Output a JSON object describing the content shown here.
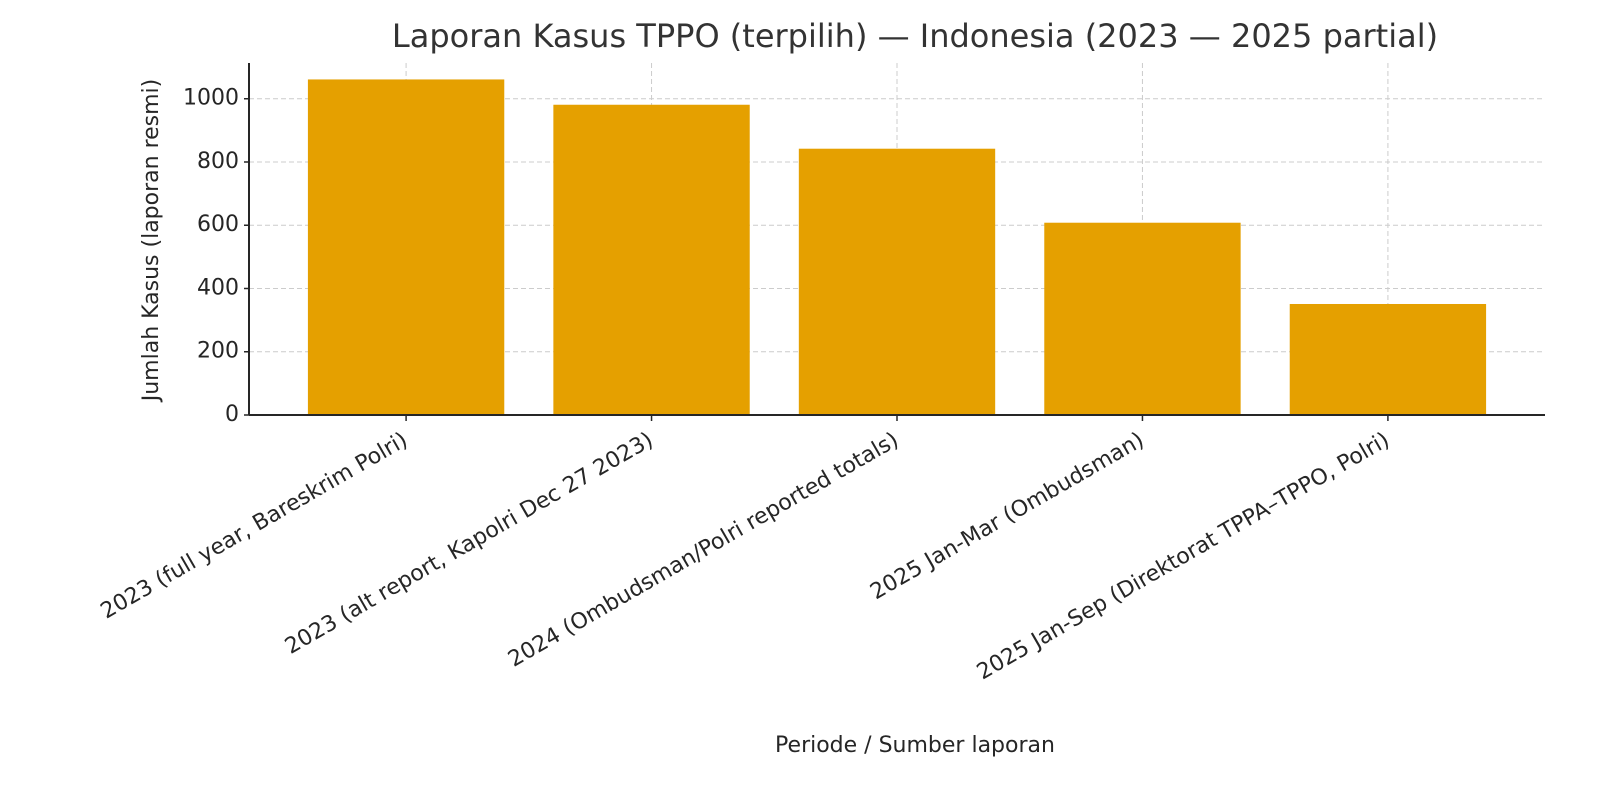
{
  "chart_data": {
    "type": "bar",
    "title": "Laporan Kasus TPPO (terpilih) — Indonesia (2023 — 2025 partial)",
    "x_label": "Periode / Sumber laporan",
    "y_label": "Jumlah Kasus (laporan resmi)",
    "categories": [
      "2023 (full year, Bareskrim Polri)",
      "2023 (alt report, Kapolri Dec 27 2023)",
      "2024 (Ombudsman/Polri reported totals)",
      "2025 Jan-Mar (Ombudsman)",
      "2025 Jan-Sep (Direktorat TPPA–TPPO, Polri)"
    ],
    "values": [
      1061,
      981,
      842,
      608,
      351
    ],
    "color": "#e5a000",
    "ylim": [
      0,
      1113
    ],
    "yticks": [
      0,
      200,
      400,
      600,
      800,
      1000
    ],
    "grid": true
  }
}
